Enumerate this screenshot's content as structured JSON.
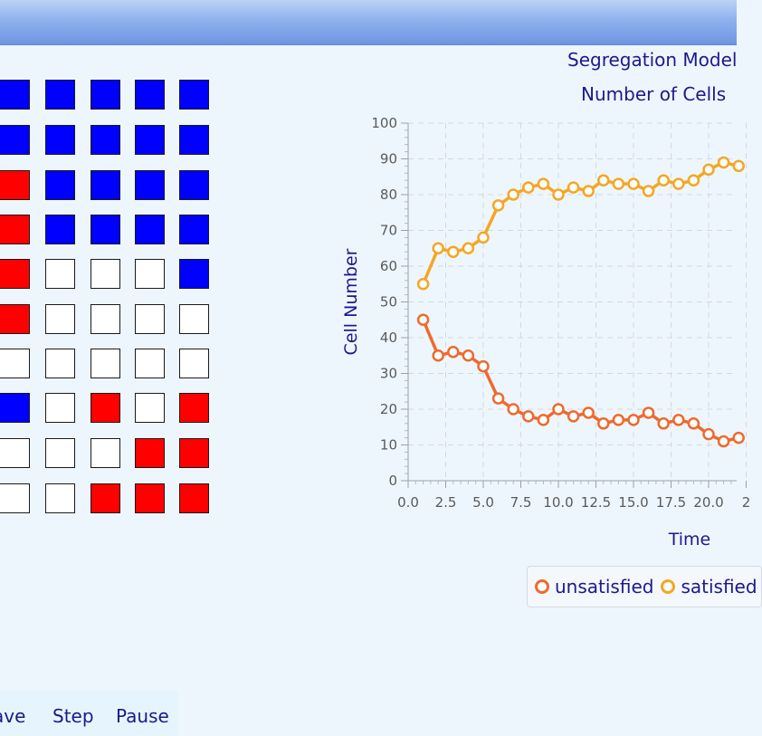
{
  "window": {
    "titlebar_color": "#8fb2ee"
  },
  "grid": {
    "colors": {
      "blue": "#0000ff",
      "red": "#ff0000",
      "empty": "#ffffff"
    },
    "rows": [
      [
        "blue",
        "blue",
        "blue",
        "blue",
        "blue"
      ],
      [
        "blue",
        "blue",
        "blue",
        "blue",
        "blue"
      ],
      [
        "red",
        "blue",
        "blue",
        "blue",
        "blue"
      ],
      [
        "red",
        "blue",
        "blue",
        "blue",
        "blue"
      ],
      [
        "red",
        "empty",
        "empty",
        "empty",
        "blue"
      ],
      [
        "red",
        "empty",
        "empty",
        "empty",
        "empty"
      ],
      [
        "empty",
        "empty",
        "empty",
        "empty",
        "empty"
      ],
      [
        "blue",
        "empty",
        "red",
        "empty",
        "red"
      ],
      [
        "empty",
        "empty",
        "empty",
        "red",
        "red"
      ],
      [
        "empty",
        "empty",
        "red",
        "red",
        "red"
      ]
    ]
  },
  "chart": {
    "title": "Segregation Model",
    "subtitle": "Number of Cells"
  },
  "chart_data": {
    "type": "line",
    "title": "Number of Cells",
    "xlabel": "Time",
    "ylabel": "Cell Number",
    "ylim": [
      0,
      100
    ],
    "xlim": [
      0,
      22.5
    ],
    "x_ticks": [
      "0.0",
      "2.5",
      "5.0",
      "7.5",
      "10.0",
      "12.5",
      "15.0",
      "17.5",
      "20.0",
      "2"
    ],
    "y_ticks": [
      "0",
      "10",
      "20",
      "30",
      "40",
      "50",
      "60",
      "70",
      "80",
      "90",
      "100"
    ],
    "grid": true,
    "legend_position": "bottom",
    "x": [
      1,
      2,
      3,
      4,
      5,
      6,
      7,
      8,
      9,
      10,
      11,
      12,
      13,
      14,
      15,
      16,
      17,
      18,
      19,
      20,
      21,
      22
    ],
    "series": [
      {
        "name": "unsatisfied",
        "color": "#ee6a2e",
        "values": [
          45,
          35,
          36,
          35,
          32,
          23,
          20,
          18,
          17,
          20,
          18,
          19,
          16,
          17,
          17,
          19,
          16,
          17,
          16,
          13,
          11,
          12
        ]
      },
      {
        "name": "satisfied",
        "color": "#f5a623",
        "values": [
          55,
          65,
          64,
          65,
          68,
          77,
          80,
          82,
          83,
          80,
          82,
          81,
          84,
          83,
          83,
          81,
          84,
          83,
          84,
          87,
          89,
          88
        ]
      }
    ]
  },
  "legend": {
    "unsatisfied_label": "unsatisfied",
    "satisfied_label": "satisfied"
  },
  "toolbar": {
    "save_label": "ave",
    "step_label": "Step",
    "pause_label": "Pause"
  }
}
